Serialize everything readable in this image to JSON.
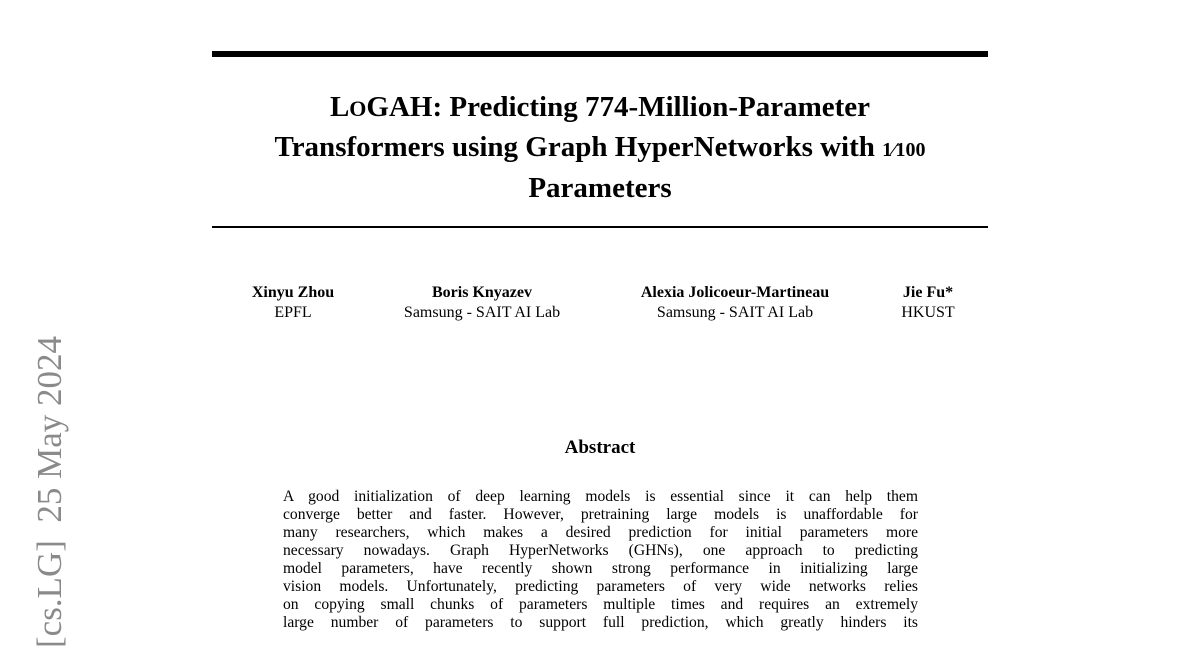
{
  "arxiv_stamp": {
    "category": "[cs.LG]",
    "date": "25 May 2024"
  },
  "title": {
    "logo_part1": "L",
    "logo_part2": "O",
    "logo_part3": "GAH",
    "line1_rest": ": Predicting 774-Million-Parameter",
    "line2": "Transformers using Graph HyperNetworks with ",
    "fraction": "1⁄100",
    "line3": "Parameters"
  },
  "authors": [
    {
      "name": "Xinyu Zhou",
      "affiliation": "EPFL"
    },
    {
      "name": "Boris Knyazev",
      "affiliation": "Samsung - SAIT AI Lab"
    },
    {
      "name": "Alexia Jolicoeur-Martineau",
      "affiliation": "Samsung - SAIT AI Lab"
    },
    {
      "name": "Jie Fu*",
      "affiliation": "HKUST"
    }
  ],
  "abstract": {
    "heading": "Abstract",
    "lines": [
      "A good initialization of deep learning models is essential since it can help them",
      "converge better and faster. However, pretraining large models is unaffordable for",
      "many researchers, which makes a desired prediction for initial parameters more",
      "necessary nowadays. Graph HyperNetworks (GHNs), one approach to predicting",
      "model parameters, have recently shown strong performance in initializing large",
      "vision models. Unfortunately, predicting parameters of very wide networks relies",
      "on copying small chunks of parameters multiple times and requires an extremely",
      "large number of parameters to support full prediction, which greatly hinders its"
    ]
  }
}
